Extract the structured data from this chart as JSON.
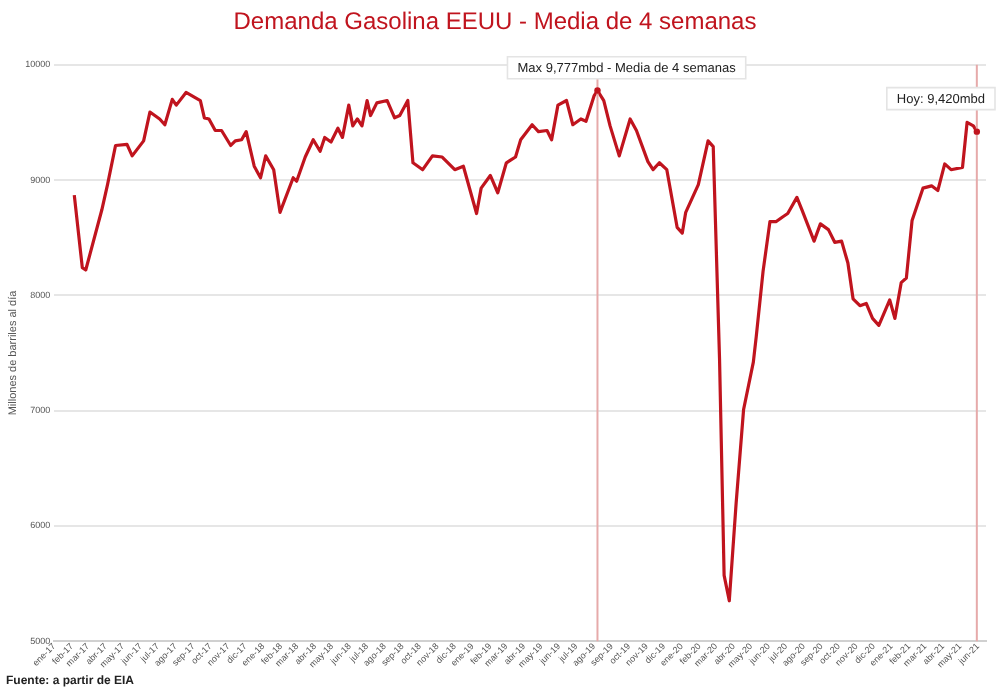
{
  "chart_data": {
    "type": "line",
    "title": "Demanda Gasolina EEUU - Media de 4 semanas",
    "ylabel": "Millones de barriles al día",
    "x": [
      "2017-02-05",
      "2017-02-19",
      "2017-02-25",
      "2017-03-25",
      "2017-04-04",
      "2017-04-18",
      "2017-05-08",
      "2017-05-17",
      "2017-06-06",
      "2017-06-17",
      "2017-07-04",
      "2017-07-13",
      "2017-07-26",
      "2017-08-02",
      "2017-08-19",
      "2017-09-13",
      "2017-09-20",
      "2017-09-28",
      "2017-10-09",
      "2017-10-20",
      "2017-11-05",
      "2017-11-13",
      "2017-11-24",
      "2017-12-02",
      "2017-12-16",
      "2017-12-27",
      "2018-01-05",
      "2018-01-19",
      "2018-01-30",
      "2018-02-22",
      "2018-02-28",
      "2018-03-15",
      "2018-03-29",
      "2018-04-10",
      "2018-04-18",
      "2018-04-29",
      "2018-05-11",
      "2018-05-19",
      "2018-05-30",
      "2018-06-06",
      "2018-06-14",
      "2018-06-22",
      "2018-07-01",
      "2018-07-07",
      "2018-07-18",
      "2018-08-05",
      "2018-08-18",
      "2018-08-27",
      "2018-09-10",
      "2018-09-19",
      "2018-10-06",
      "2018-10-23",
      "2018-11-09",
      "2018-12-01",
      "2018-12-16",
      "2019-01-08",
      "2019-01-16",
      "2019-02-01",
      "2019-02-14",
      "2019-03-01",
      "2019-03-17",
      "2019-03-26",
      "2019-04-15",
      "2019-04-26",
      "2019-05-11",
      "2019-05-19",
      "2019-05-30",
      "2019-06-14",
      "2019-06-25",
      "2019-07-09",
      "2019-07-18",
      "2019-08-01",
      "2019-08-07",
      "2019-08-18",
      "2019-08-29",
      "2019-09-14",
      "2019-10-03",
      "2019-10-14",
      "2019-11-03",
      "2019-11-12",
      "2019-11-23",
      "2019-12-06",
      "2019-12-24",
      "2020-01-02",
      "2020-01-08",
      "2020-01-30",
      "2020-02-16",
      "2020-02-25",
      "2020-03-07",
      "2020-03-15",
      "2020-03-24",
      "2020-04-05",
      "2020-04-18",
      "2020-05-05",
      "2020-05-10",
      "2020-05-22",
      "2020-06-03",
      "2020-06-14",
      "2020-06-25",
      "2020-07-04",
      "2020-07-20",
      "2020-07-29",
      "2020-08-19",
      "2020-08-30",
      "2020-09-13",
      "2020-09-24",
      "2020-10-06",
      "2020-10-17",
      "2020-10-26",
      "2020-11-07",
      "2020-11-18",
      "2020-11-29",
      "2020-12-10",
      "2020-12-29",
      "2021-01-07",
      "2021-01-18",
      "2021-01-27",
      "2021-02-06",
      "2021-02-25",
      "2021-03-12",
      "2021-03-23",
      "2021-04-04",
      "2021-04-15",
      "2021-05-05",
      "2021-05-13",
      "2021-05-24",
      "2021-05-30"
    ],
    "series": [
      {
        "color": "#c0141e",
        "values": [
          8870,
          8240,
          8220,
          8740,
          8960,
          9300,
          9310,
          9210,
          9340,
          9590,
          9530,
          9480,
          9700,
          9650,
          9760,
          9690,
          9540,
          9530,
          9430,
          9430,
          9300,
          9340,
          9350,
          9420,
          9120,
          9020,
          9210,
          9090,
          8720,
          9020,
          8990,
          9200,
          9350,
          9250,
          9370,
          9330,
          9450,
          9370,
          9650,
          9470,
          9530,
          9470,
          9690,
          9560,
          9670,
          9690,
          9540,
          9560,
          9690,
          9150,
          9090,
          9210,
          9200,
          9090,
          9120,
          8710,
          8930,
          9040,
          8890,
          9150,
          9200,
          9350,
          9480,
          9420,
          9430,
          9350,
          9650,
          9690,
          9480,
          9530,
          9510,
          9730,
          9777,
          9690,
          9470,
          9210,
          9530,
          9430,
          9160,
          9090,
          9150,
          9090,
          8590,
          8540,
          8720,
          8960,
          9340,
          9290,
          7450,
          5570,
          5350,
          6200,
          7010,
          7420,
          7640,
          8210,
          8640,
          8640,
          8680,
          8710,
          8850,
          8740,
          8470,
          8620,
          8570,
          8460,
          8470,
          8280,
          7970,
          7910,
          7930,
          7800,
          7740,
          7960,
          7800,
          8110,
          8150,
          8650,
          8930,
          8950,
          8910,
          9140,
          9090,
          9110,
          9500,
          9470,
          9420
        ]
      }
    ],
    "xlim": [
      "2017-01-01",
      "2021-06-15"
    ],
    "xticks": [
      {
        "value": "2017-01",
        "label": "ene-17"
      },
      {
        "value": "2017-02",
        "label": "feb-17"
      },
      {
        "value": "2017-03",
        "label": "mar-17"
      },
      {
        "value": "2017-04",
        "label": "abr-17"
      },
      {
        "value": "2017-05",
        "label": "may-17"
      },
      {
        "value": "2017-06",
        "label": "jun-17"
      },
      {
        "value": "2017-07",
        "label": "jul-17"
      },
      {
        "value": "2017-08",
        "label": "ago-17"
      },
      {
        "value": "2017-09",
        "label": "sep-17"
      },
      {
        "value": "2017-10",
        "label": "oct-17"
      },
      {
        "value": "2017-11",
        "label": "nov-17"
      },
      {
        "value": "2017-12",
        "label": "dic-17"
      },
      {
        "value": "2018-01",
        "label": "ene-18"
      },
      {
        "value": "2018-02",
        "label": "feb-18"
      },
      {
        "value": "2018-03",
        "label": "mar-18"
      },
      {
        "value": "2018-04",
        "label": "abr-18"
      },
      {
        "value": "2018-05",
        "label": "may-18"
      },
      {
        "value": "2018-06",
        "label": "jun-18"
      },
      {
        "value": "2018-07",
        "label": "jul-18"
      },
      {
        "value": "2018-08",
        "label": "ago-18"
      },
      {
        "value": "2018-09",
        "label": "sep-18"
      },
      {
        "value": "2018-10",
        "label": "oct-18"
      },
      {
        "value": "2018-11",
        "label": "nov-18"
      },
      {
        "value": "2018-12",
        "label": "dic-18"
      },
      {
        "value": "2019-01",
        "label": "ene-19"
      },
      {
        "value": "2019-02",
        "label": "feb-19"
      },
      {
        "value": "2019-03",
        "label": "mar-19"
      },
      {
        "value": "2019-04",
        "label": "abr-19"
      },
      {
        "value": "2019-05",
        "label": "may-19"
      },
      {
        "value": "2019-06",
        "label": "jun-19"
      },
      {
        "value": "2019-07",
        "label": "jul-19"
      },
      {
        "value": "2019-08",
        "label": "ago-19"
      },
      {
        "value": "2019-09",
        "label": "sep-19"
      },
      {
        "value": "2019-10",
        "label": "oct-19"
      },
      {
        "value": "2019-11",
        "label": "nov-19"
      },
      {
        "value": "2019-12",
        "label": "dic-19"
      },
      {
        "value": "2020-01",
        "label": "ene-20"
      },
      {
        "value": "2020-02",
        "label": "feb-20"
      },
      {
        "value": "2020-03",
        "label": "mar-20"
      },
      {
        "value": "2020-04",
        "label": "abr-20"
      },
      {
        "value": "2020-05",
        "label": "may-20"
      },
      {
        "value": "2020-06",
        "label": "jun-20"
      },
      {
        "value": "2020-07",
        "label": "jul-20"
      },
      {
        "value": "2020-08",
        "label": "ago-20"
      },
      {
        "value": "2020-09",
        "label": "sep-20"
      },
      {
        "value": "2020-10",
        "label": "oct-20"
      },
      {
        "value": "2020-11",
        "label": "nov-20"
      },
      {
        "value": "2020-12",
        "label": "dic-20"
      },
      {
        "value": "2021-01",
        "label": "ene-21"
      },
      {
        "value": "2021-02",
        "label": "feb-21"
      },
      {
        "value": "2021-03",
        "label": "mar-21"
      },
      {
        "value": "2021-04",
        "label": "abr-21"
      },
      {
        "value": "2021-05",
        "label": "may-21"
      },
      {
        "value": "2021-06",
        "label": "jun-21"
      }
    ],
    "ylim": [
      5000,
      10000
    ],
    "yticks": [
      5000,
      6000,
      7000,
      8000,
      9000,
      10000
    ],
    "grid": "y",
    "legend": false,
    "marker": "none",
    "line_style": "solid",
    "ref_lines": [
      {
        "axis": "x",
        "value": "2019-08-07",
        "color": "#e6aaaa"
      },
      {
        "axis": "x",
        "value": "2021-05-30",
        "color": "#e6aaaa"
      }
    ],
    "annotations": [
      {
        "text": "Max 9,777mbd - Media de 4 semanas",
        "x": "2019-08-07",
        "y": 9777
      },
      {
        "text": "Hoy: 9,420mbd",
        "x": "2021-05-30",
        "y": 9420
      },
      "Fuente: a partir de EIA"
    ]
  }
}
